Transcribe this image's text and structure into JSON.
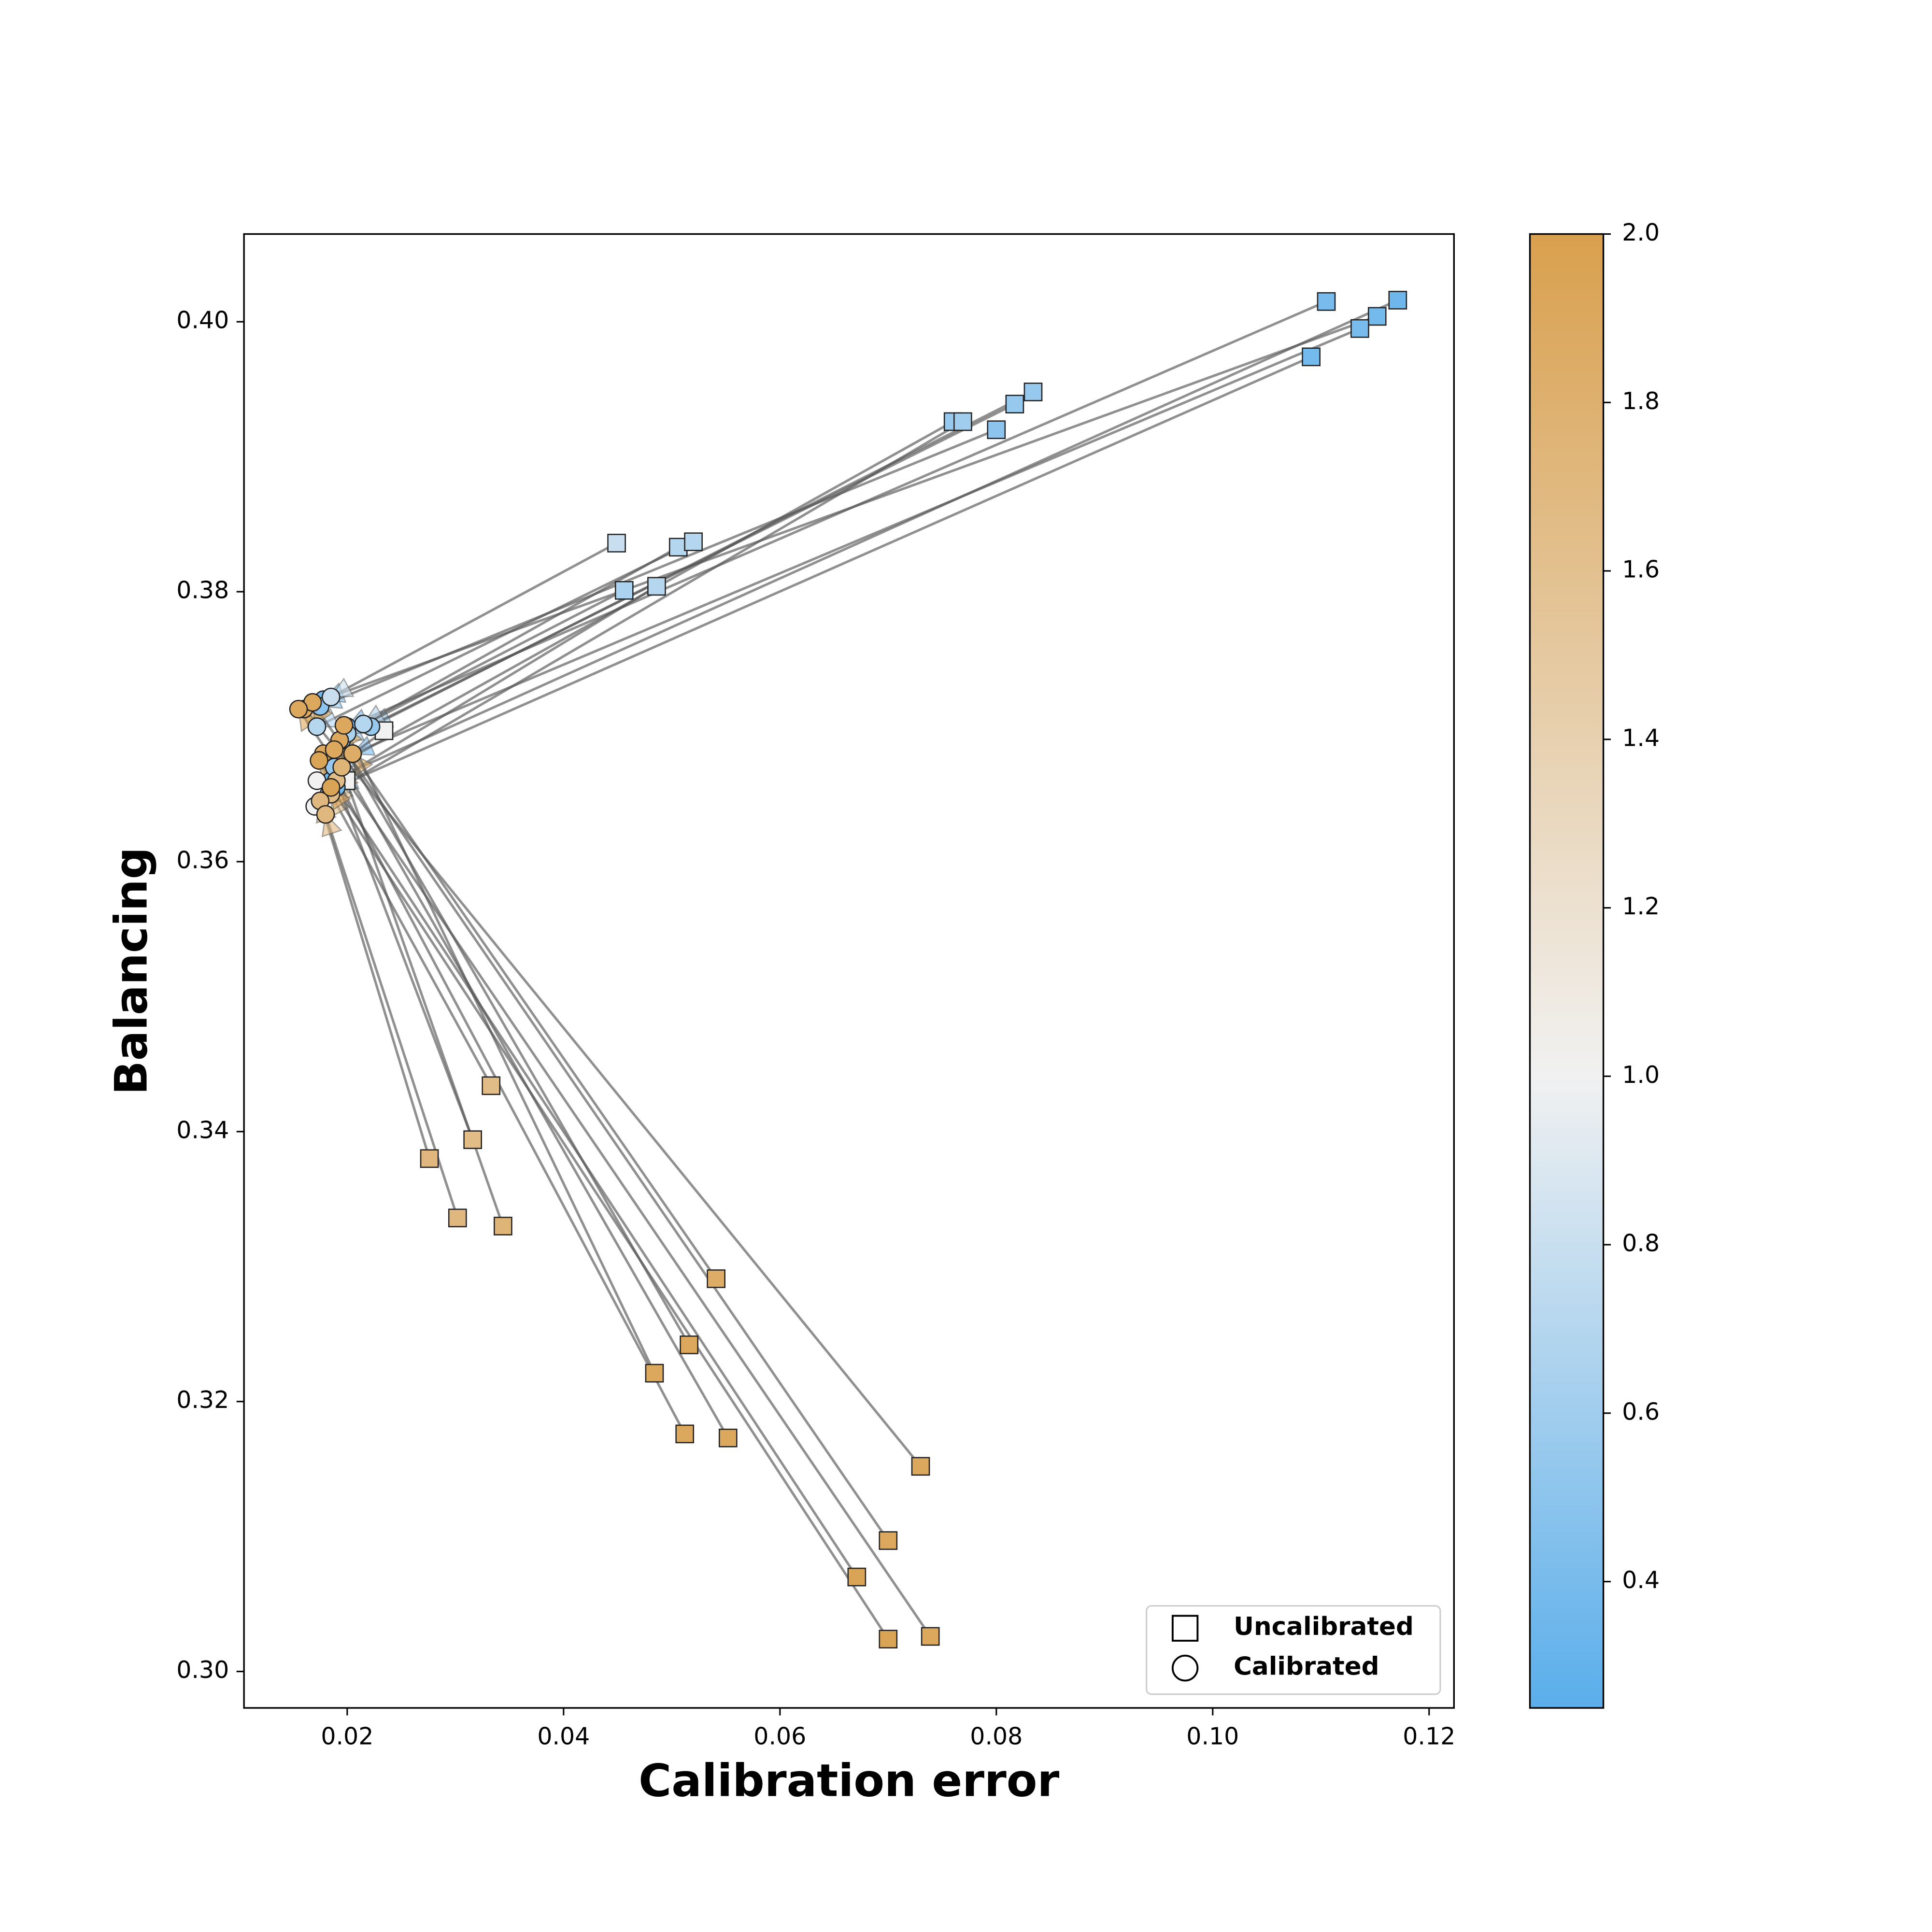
{
  "chart_data": {
    "type": "scatter",
    "xlabel": "Calibration error",
    "ylabel": "Balancing",
    "xlim": [
      0.01046,
      0.1223
    ],
    "ylim": [
      0.2973,
      0.4065
    ],
    "xticks": [
      0.02,
      0.04,
      0.06,
      0.08,
      {
        "value": 0.1,
        "label": "0.10"
      },
      0.12
    ],
    "yticks": [
      {
        "value": 0.3,
        "label": "0.30"
      },
      0.32,
      0.34,
      0.36,
      0.38,
      {
        "value": 0.4,
        "label": "0.40"
      }
    ],
    "legend": "lower right",
    "arrow_color": "#555555",
    "colorbar": {
      "clim": [
        0.25,
        2.0
      ],
      "ticks": [
        0.4,
        0.6,
        0.8,
        {
          "value": 1.0,
          "label": "1.0"
        },
        1.2,
        1.4,
        1.6,
        1.8,
        {
          "value": 2.0,
          "label": "2.0"
        }
      ],
      "colormap": [
        {
          "value": 0.25,
          "color": "#5aaeeb"
        },
        {
          "value": 1.0,
          "color": "#f1f1f1"
        },
        {
          "value": 2.0,
          "color": "#d9a04e"
        }
      ]
    },
    "color_values": [
      0.4,
      0.35,
      0.38,
      0.4,
      0.38,
      0.55,
      0.55,
      0.5,
      0.55,
      0.6,
      0.8,
      0.7,
      0.7,
      0.65,
      0.7,
      1.0,
      1.0,
      1.65,
      1.7,
      1.65,
      1.7,
      1.75,
      1.85,
      1.9,
      1.9,
      1.9,
      1.9,
      1.9,
      1.9,
      1.95,
      1.95,
      1.9
    ],
    "series": [
      {
        "name": "Uncalibrated",
        "marker": "square",
        "x": [
          0.1105,
          0.1171,
          0.1152,
          0.1136,
          0.1091,
          0.0834,
          0.0817,
          0.08,
          0.076,
          0.0769,
          0.0449,
          0.0506,
          0.052,
          0.0456,
          0.0486,
          0.0234,
          0.0199,
          0.0333,
          0.0276,
          0.0316,
          0.0302,
          0.0344,
          0.0541,
          0.0516,
          0.0484,
          0.0512,
          0.0552,
          0.073,
          0.07,
          0.0671,
          0.07,
          0.0739
        ],
        "y": [
          0.4015,
          0.4016,
          0.4004,
          0.3995,
          0.3974,
          0.3948,
          0.3939,
          0.392,
          0.3926,
          0.3926,
          0.3836,
          0.3833,
          0.3837,
          0.3801,
          0.3804,
          0.3697,
          0.366,
          0.3434,
          0.338,
          0.3394,
          0.3336,
          0.333,
          0.3291,
          0.3242,
          0.3221,
          0.3176,
          0.3173,
          0.3152,
          0.3097,
          0.307,
          0.3024,
          0.3026
        ]
      },
      {
        "name": "Calibrated",
        "marker": "circle",
        "x": [
          0.02,
          0.0185,
          0.0178,
          0.0205,
          0.019,
          0.0222,
          0.0195,
          0.0175,
          0.0188,
          0.0183,
          0.0185,
          0.0215,
          0.0172,
          0.02,
          0.019,
          0.0172,
          0.017,
          0.0185,
          0.0175,
          0.019,
          0.018,
          0.0195,
          0.0205,
          0.0193,
          0.0197,
          0.0178,
          0.0188,
          0.016,
          0.0168,
          0.0174,
          0.0185,
          0.0155
        ],
        "y": [
          0.37,
          0.366,
          0.372,
          0.368,
          0.3655,
          0.37,
          0.369,
          0.3715,
          0.367,
          0.365,
          0.3722,
          0.3702,
          0.37,
          0.3695,
          0.366,
          0.366,
          0.3641,
          0.365,
          0.3645,
          0.366,
          0.3635,
          0.367,
          0.368,
          0.369,
          0.3701,
          0.368,
          0.3683,
          0.3713,
          0.3718,
          0.3675,
          0.3655,
          0.3713
        ]
      }
    ]
  }
}
